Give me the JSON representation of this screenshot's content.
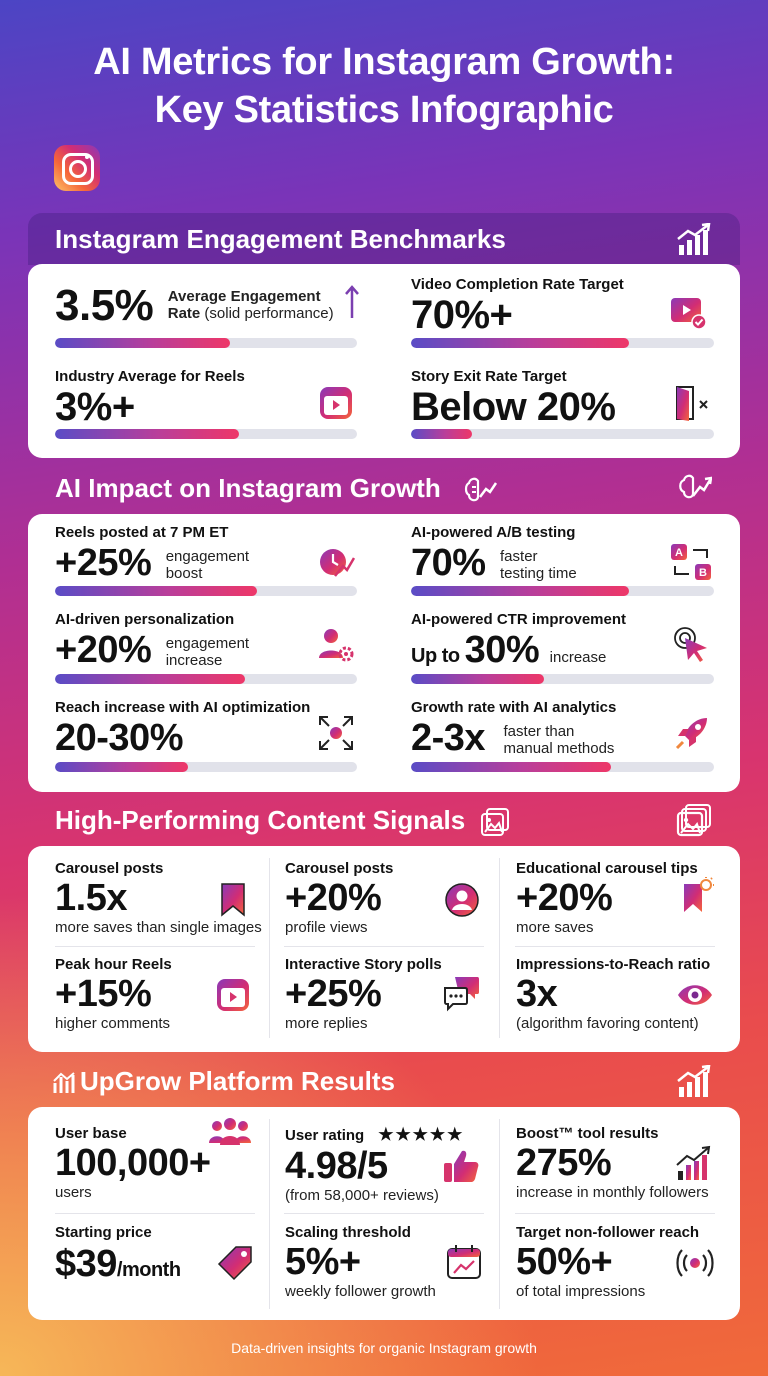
{
  "header": {
    "title_line1": "AI Metrics for Instagram Growth:",
    "title_line2": "Key Statistics Infographic"
  },
  "colors": {
    "bar_start": "#5a4cc6",
    "bar_mid": "#b83e9b",
    "bar_end": "#ee3768",
    "icon_accent": "#d6336c"
  },
  "benchmarks": {
    "title": "Instagram Engagement Benchmarks",
    "icon": "bar-chart-growth-icon",
    "items": [
      {
        "value": "3.5%",
        "label_line1": "Average Engagement",
        "label_line2_bold": "Rate",
        "label_line2": " (solid performance)",
        "progress": 0.58,
        "icon": "arrow-up-icon"
      },
      {
        "label": "Video Completion Rate Target",
        "value": "70%+",
        "progress": 0.72,
        "icon": "video-check-icon"
      },
      {
        "label": "Industry Average for Reels",
        "value": "3%+",
        "progress": 0.61,
        "icon": "reels-icon"
      },
      {
        "label": "Story Exit Rate Target",
        "value": "Below 20%",
        "progress": 0.2,
        "icon": "door-exit-icon"
      }
    ]
  },
  "ai_impact": {
    "title": "AI Impact on Instagram Growth",
    "icon": "brain-growth-icon",
    "items": [
      {
        "label": "Reels posted at 7 PM ET",
        "value": "+25%",
        "side_line1": "engagement",
        "side_line2": "boost",
        "progress": 0.67,
        "icon": "clock-growth-icon"
      },
      {
        "label": "AI-powered A/B testing",
        "value": "70%",
        "side_line1": "faster",
        "side_line2": "testing time",
        "progress": 0.72,
        "icon": "ab-test-icon"
      },
      {
        "label": "AI-driven personalization",
        "value": "+20%",
        "side_line1": "engagement",
        "side_line2": "increase",
        "progress": 0.63,
        "icon": "user-gear-icon"
      },
      {
        "label": "AI-powered CTR improvement",
        "value_prefix": "Up to ",
        "value": "30%",
        "side": "increase",
        "progress": 0.44,
        "icon": "cursor-click-icon"
      },
      {
        "label": "Reach increase with AI optimization",
        "value": "20-30%",
        "progress": 0.44,
        "icon": "expand-arrows-icon"
      },
      {
        "label": "Growth rate with AI analytics",
        "value": "2-3x",
        "side_line1": "faster than",
        "side_line2": "manual methods",
        "progress": 0.66,
        "icon": "rocket-icon"
      }
    ]
  },
  "content_signals": {
    "title": "High-Performing Content Signals",
    "icon": "image-stack-icon",
    "items": [
      {
        "label": "Carousel posts",
        "value": "1.5x",
        "sub": "more saves than single images",
        "icon": "bookmark-icon"
      },
      {
        "label": "Carousel posts",
        "value": "+20%",
        "sub": "profile views",
        "icon": "profile-icon"
      },
      {
        "label": "Educational carousel tips",
        "value": "+20%",
        "sub": "more saves",
        "icon": "bookmark-idea-icon"
      },
      {
        "label": "Peak hour Reels",
        "value": "+15%",
        "sub": "higher comments",
        "icon": "reels-icon"
      },
      {
        "label": "Interactive Story polls",
        "value": "+25%",
        "sub": "more replies",
        "icon": "chat-bubbles-icon"
      },
      {
        "label": "Impressions-to-Reach ratio",
        "value": "3x",
        "sub": "(algorithm favoring content)",
        "icon": "eye-icon"
      }
    ]
  },
  "upgrow": {
    "title": "UpGrow Platform Results",
    "icon": "bar-chart-growth-icon",
    "items": [
      {
        "label": "User base",
        "value": "100,000+",
        "sub": "users",
        "icon": "users-group-icon"
      },
      {
        "label": "User rating",
        "stars": "★★★★★",
        "value": "4.98/5",
        "sub": "(from 58,000+ reviews)",
        "icon": "thumbs-up-icon"
      },
      {
        "label": "Boost™ tool results",
        "value": "275%",
        "sub": "increase in monthly followers",
        "icon": "bar-chart-growth-icon"
      },
      {
        "label": "Starting price",
        "value": "$39",
        "unit": "/month",
        "icon": "price-tag-icon"
      },
      {
        "label": "Scaling threshold",
        "value": "5%+",
        "sub": "weekly follower growth",
        "icon": "calendar-growth-icon"
      },
      {
        "label": "Target non-follower reach",
        "value": "50%+",
        "sub": "of total impressions",
        "icon": "broadcast-icon"
      }
    ]
  },
  "footer": {
    "text": "Data-driven insights for organic Instagram growth"
  }
}
